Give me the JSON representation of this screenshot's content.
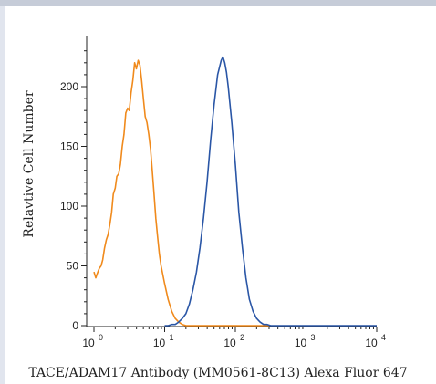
{
  "chart_data": {
    "type": "line",
    "title": "",
    "xlabel": "TACE/ADAM17 Antibody (MM0561-8C13) Alexa Fluor 647",
    "ylabel": "Relavtive Cell Number",
    "xscale": "log",
    "xlim": [
      1,
      10000
    ],
    "ylim": [
      0,
      240
    ],
    "y_ticks": [
      0,
      50,
      100,
      150,
      200
    ],
    "x_ticks": [
      {
        "value": 1,
        "base": "10",
        "exp": "0"
      },
      {
        "value": 10,
        "base": "10",
        "exp": "1"
      },
      {
        "value": 100,
        "base": "10",
        "exp": "2"
      },
      {
        "value": 1000,
        "base": "10",
        "exp": "3"
      },
      {
        "value": 10000,
        "base": "10",
        "exp": "4"
      }
    ],
    "grid": false,
    "series": [
      {
        "color": "#f08a1c",
        "x": [
          1.0,
          1.06,
          1.12,
          1.19,
          1.26,
          1.33,
          1.41,
          1.5,
          1.58,
          1.68,
          1.78,
          1.88,
          2.0,
          2.11,
          2.24,
          2.37,
          2.51,
          2.66,
          2.82,
          2.99,
          3.16,
          3.35,
          3.55,
          3.76,
          3.98,
          4.22,
          4.47,
          4.73,
          5.01,
          5.31,
          5.62,
          5.96,
          6.31,
          6.68,
          7.08,
          7.5,
          7.94,
          8.41,
          8.91,
          10.0,
          11.2,
          12.6,
          14.1,
          15.8,
          17.8,
          20.0,
          25.1,
          31.6,
          50,
          100,
          200,
          300
        ],
        "y": [
          45,
          40,
          44,
          48,
          50,
          55,
          65,
          72,
          76,
          85,
          95,
          110,
          115,
          125,
          127,
          135,
          150,
          160,
          178,
          182,
          180,
          195,
          205,
          220,
          215,
          222,
          218,
          205,
          190,
          175,
          170,
          160,
          148,
          130,
          110,
          90,
          75,
          60,
          50,
          35,
          22,
          12,
          6,
          3,
          1,
          0,
          0,
          0,
          0,
          0,
          0,
          0
        ]
      },
      {
        "color": "#2a56a6",
        "x": [
          10.0,
          11.2,
          12.6,
          14.1,
          15.8,
          17.8,
          20.0,
          22.4,
          25.1,
          28.2,
          31.6,
          35.5,
          39.8,
          44.7,
          50.1,
          56.2,
          63.1,
          66.8,
          70.8,
          75.0,
          79.4,
          89.1,
          100,
          112,
          126,
          141,
          158,
          178,
          200,
          224,
          251,
          282,
          316,
          400,
          1000,
          10000
        ],
        "y": [
          0,
          0,
          1,
          1,
          3,
          6,
          10,
          18,
          30,
          45,
          65,
          90,
          120,
          155,
          185,
          210,
          222,
          225,
          220,
          212,
          200,
          170,
          135,
          95,
          65,
          40,
          22,
          12,
          6,
          3,
          1,
          1,
          0,
          0,
          0,
          0
        ]
      }
    ]
  }
}
